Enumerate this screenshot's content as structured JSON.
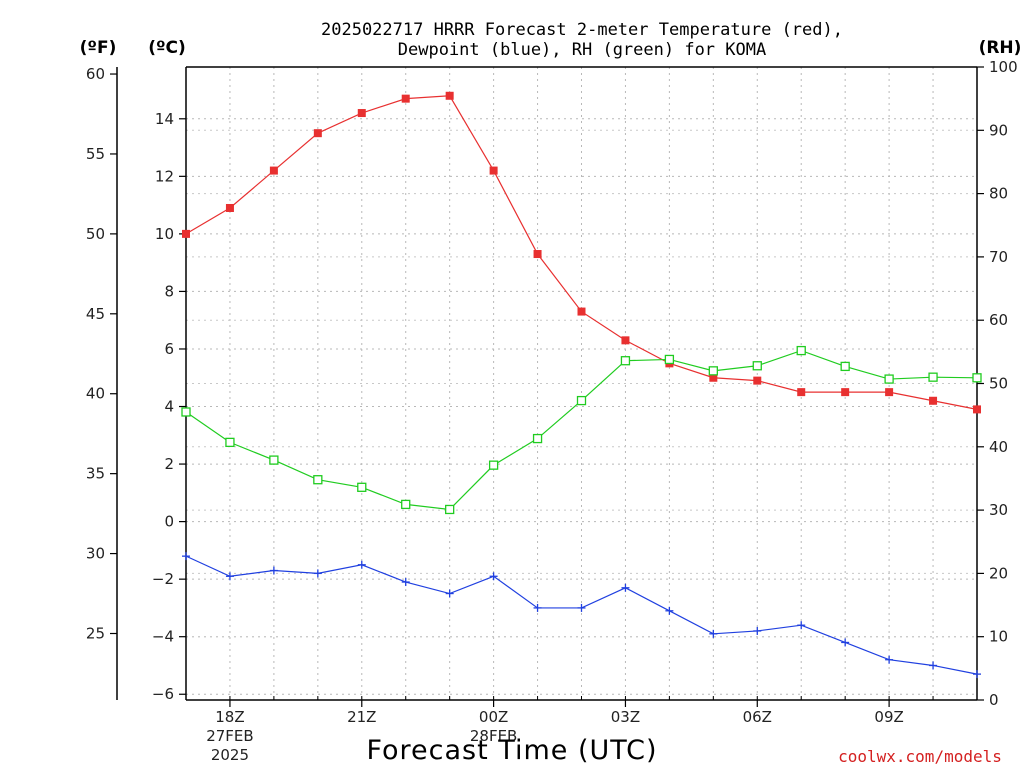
{
  "title": {
    "line1": "2025022717 HRRR Forecast 2-meter Temperature (red),",
    "line2": "Dewpoint (blue), RH (green) for KOMA"
  },
  "credit": "coolwx.com/models",
  "chart_data": {
    "type": "line",
    "xlabel": "Forecast Time (UTC)",
    "x": [
      17,
      18,
      19,
      20,
      21,
      22,
      23,
      24,
      25,
      26,
      27,
      28,
      29,
      30,
      31,
      32,
      33,
      34,
      35
    ],
    "x_ticks": [
      {
        "x": 18,
        "label": "18Z",
        "sub": [
          "27FEB",
          "2025"
        ]
      },
      {
        "x": 21,
        "label": "21Z",
        "sub": []
      },
      {
        "x": 24,
        "label": "00Z",
        "sub": [
          "28FEB"
        ]
      },
      {
        "x": 27,
        "label": "03Z",
        "sub": []
      },
      {
        "x": 30,
        "label": "06Z",
        "sub": []
      },
      {
        "x": 33,
        "label": "09Z",
        "sub": []
      }
    ],
    "xlim": [
      17,
      35
    ],
    "y_left_c": {
      "label": "(ºC)",
      "lim": [
        -6.2,
        15.8
      ],
      "ticks": [
        -6,
        -4,
        -2,
        0,
        2,
        4,
        6,
        8,
        10,
        12,
        14
      ],
      "tick_labels": [
        "−6",
        "−4",
        "−2",
        "0",
        "2",
        "4",
        "6",
        "8",
        "10",
        "12",
        "14"
      ]
    },
    "y_left_f": {
      "label": "(ºF)",
      "ticks": [
        25,
        30,
        35,
        40,
        45,
        50,
        55,
        60
      ],
      "tick_labels": [
        "25",
        "30",
        "35",
        "40",
        "45",
        "50",
        "55",
        "60"
      ]
    },
    "y_right": {
      "label": "(RH)",
      "lim": [
        0,
        100
      ],
      "ticks": [
        0,
        10,
        20,
        30,
        40,
        50,
        60,
        70,
        80,
        90,
        100
      ],
      "tick_labels": [
        "0",
        "10",
        "20",
        "30",
        "40",
        "50",
        "60",
        "70",
        "80",
        "90",
        "100"
      ]
    },
    "grid": true,
    "series": [
      {
        "name": "Temperature",
        "axis": "celsius",
        "color": "#e83030",
        "marker": "filled-square",
        "values": [
          10.0,
          10.9,
          12.2,
          13.5,
          14.2,
          14.7,
          14.8,
          12.2,
          9.3,
          7.3,
          6.3,
          5.5,
          5.0,
          4.9,
          4.5,
          4.5,
          4.5,
          4.2,
          3.9
        ]
      },
      {
        "name": "Dewpoint",
        "axis": "celsius",
        "color": "#2040e0",
        "marker": "plus",
        "values": [
          -1.2,
          -1.9,
          -1.7,
          -1.8,
          -1.5,
          -2.1,
          -2.5,
          -1.9,
          -3.0,
          -3.0,
          -2.3,
          -3.1,
          -3.9,
          -3.8,
          -3.6,
          -4.2,
          -4.8,
          -5.0,
          -5.3
        ]
      },
      {
        "name": "RH",
        "axis": "rh",
        "color": "#20cc20",
        "marker": "open-square",
        "values": [
          45.5,
          40.7,
          37.9,
          34.8,
          33.6,
          30.9,
          30.1,
          37.1,
          41.3,
          47.3,
          53.6,
          53.8,
          52.0,
          52.8,
          55.2,
          52.7,
          50.7,
          51.0,
          50.9
        ]
      }
    ]
  }
}
